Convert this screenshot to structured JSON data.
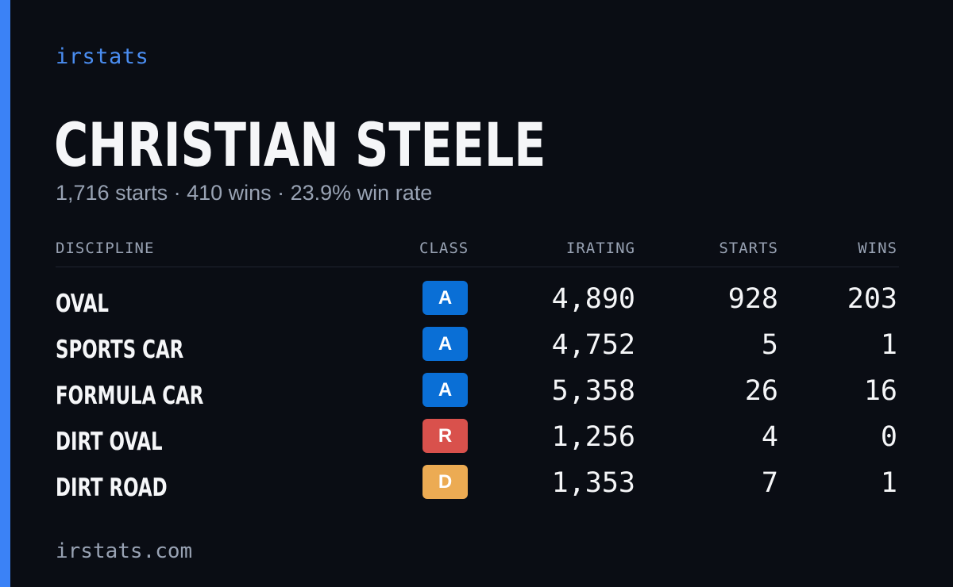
{
  "brand": "irstats",
  "driver": {
    "name": "CHRISTIAN STEELE",
    "summary": "1,716 starts · 410 wins · 23.9% win rate"
  },
  "table": {
    "headers": {
      "discipline": "DISCIPLINE",
      "class": "CLASS",
      "irating": "IRATING",
      "starts": "STARTS",
      "wins": "WINS"
    },
    "rows": [
      {
        "discipline": "OVAL",
        "class": "A",
        "irating": "4,890",
        "starts": "928",
        "wins": "203"
      },
      {
        "discipline": "SPORTS CAR",
        "class": "A",
        "irating": "4,752",
        "starts": "5",
        "wins": "1"
      },
      {
        "discipline": "FORMULA CAR",
        "class": "A",
        "irating": "5,358",
        "starts": "26",
        "wins": "16"
      },
      {
        "discipline": "DIRT OVAL",
        "class": "R",
        "irating": "1,256",
        "starts": "4",
        "wins": "0"
      },
      {
        "discipline": "DIRT ROAD",
        "class": "D",
        "irating": "1,353",
        "starts": "7",
        "wins": "1"
      }
    ]
  },
  "license_colors": {
    "A": "#0a6fd6",
    "R": "#d9514c",
    "D": "#ecab53"
  },
  "accent_color": "#3b82f6",
  "footer": "irstats.com"
}
